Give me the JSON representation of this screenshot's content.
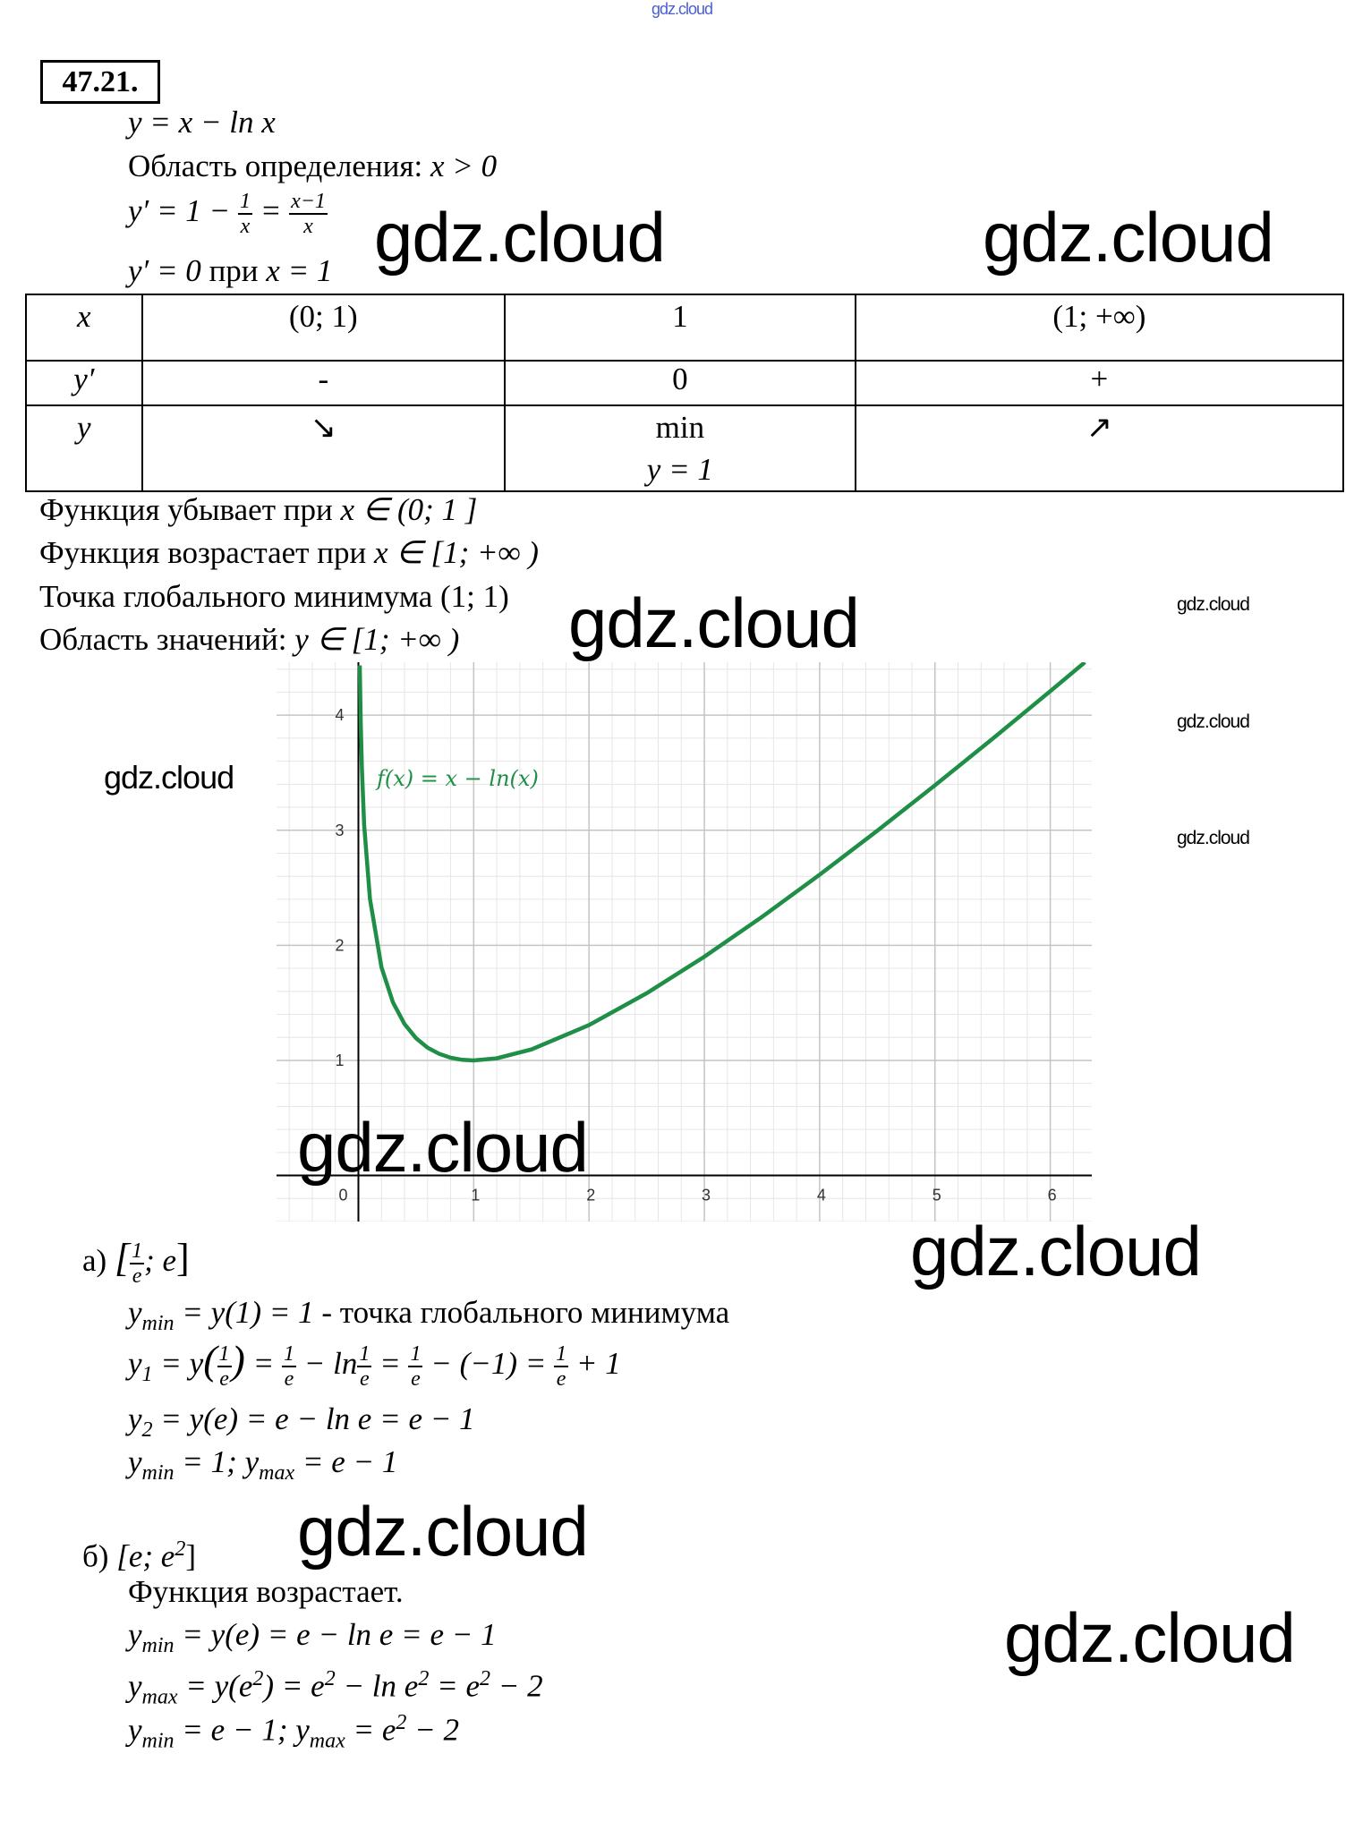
{
  "watermark_top": "gdz.cloud",
  "watermarks": [
    "gdz.cloud",
    "gdz.cloud",
    "gdz.cloud",
    "gdz.cloud",
    "gdz.cloud",
    "gdz.cloud",
    "gdz.cloud",
    "gdz.cloud",
    "gdz.cloud",
    "gdz.cloud",
    "gdz.cloud"
  ],
  "problem_number": "47.21.",
  "intro": {
    "function": "y = x − ln x",
    "domain_label": "Область определения: ",
    "domain_value": "x > 0",
    "deriv_lhs": "y′ = 1 − ",
    "deriv_f1_num": "1",
    "deriv_f1_den": "x",
    "deriv_eq": " = ",
    "deriv_f2_num": "x−1",
    "deriv_f2_den": "x",
    "zero_a": "y′ = 0",
    "zero_b": " при ",
    "zero_c": "x = 1"
  },
  "table": {
    "rows": [
      [
        "x",
        "(0; 1)",
        "1",
        "(1; +∞)"
      ],
      [
        "y′",
        "-",
        "0",
        "+"
      ],
      [
        "y",
        "↘",
        "min",
        "↗"
      ]
    ],
    "extra_cell": "y = 1"
  },
  "conclusions": [
    {
      "text": "Функция убывает при ",
      "math": "x ∈ (0; 1 ]"
    },
    {
      "text": "Функция возрастает при ",
      "math": "x ∈ [1; +∞ )"
    },
    {
      "text": "Точка глобального минимума ",
      "math": "(1; 1)"
    },
    {
      "text": "Область значений: ",
      "math": "y ∈ [1; +∞ )"
    }
  ],
  "chart_data": {
    "type": "line",
    "title": "",
    "function_label": "f(x)  =  x − ln(x)",
    "xlim": [
      -0.71,
      6.36
    ],
    "ylim": [
      -0.4,
      4.46
    ],
    "x_ticks": [
      "0",
      "1",
      "2",
      "3",
      "4",
      "5",
      "6"
    ],
    "y_ticks": [
      "1",
      "2",
      "3",
      "4"
    ],
    "grid": true,
    "minor_grid_step": 0.2,
    "color": "#1f8f47",
    "points": [
      [
        0.012,
        4.432
      ],
      [
        0.02,
        3.932
      ],
      [
        0.03,
        3.537
      ],
      [
        0.05,
        3.046
      ],
      [
        0.1,
        2.403
      ],
      [
        0.2,
        1.809
      ],
      [
        0.3,
        1.504
      ],
      [
        0.4,
        1.316
      ],
      [
        0.5,
        1.193
      ],
      [
        0.6,
        1.111
      ],
      [
        0.7,
        1.057
      ],
      [
        0.8,
        1.023
      ],
      [
        0.9,
        1.005
      ],
      [
        1,
        1
      ],
      [
        1.2,
        1.018
      ],
      [
        1.5,
        1.095
      ],
      [
        2,
        1.307
      ],
      [
        2.5,
        1.584
      ],
      [
        3,
        1.901
      ],
      [
        3.5,
        2.247
      ],
      [
        4,
        2.614
      ],
      [
        4.5,
        2.996
      ],
      [
        5,
        3.391
      ],
      [
        5.5,
        3.795
      ],
      [
        6,
        4.208
      ],
      [
        6.3,
        4.46
      ]
    ]
  },
  "part_a": {
    "label": "а) ",
    "interval_open": "[",
    "interval_num": "1",
    "interval_den": "e",
    "interval_rest": "; e",
    "interval_close": "]",
    "line1_math": "y",
    "line1_sub": "min",
    "line1_rest": " = y(1) = 1",
    "line1_text": " - точка глобального минимума",
    "line2": {
      "a": "y",
      "sub": "1",
      "b": " = y",
      "c": "(",
      "d": ")",
      "e": " = ",
      "f": " − ln",
      "g": " = ",
      "h": " − (−1) = ",
      "i": " + 1",
      "num": "1",
      "den": "e"
    },
    "line3_a": "y",
    "line3_sub": "2",
    "line3_rest": " = y(e) = e − ln e = e − 1",
    "line4_a": "y",
    "line4_sub1": "min",
    "line4_b": " = 1; y",
    "line4_sub2": "max",
    "line4_c": " = e − 1"
  },
  "part_b": {
    "label": "б) ",
    "interval_a": "[e; e",
    "interval_sup": "2",
    "interval_b": "]",
    "text": "Функция возрастает.",
    "line1_a": "y",
    "line1_sub": "min",
    "line1_rest": " = y(e) = e − ln e = e − 1",
    "line2_a": "y",
    "line2_sub": "max",
    "line2_b": " = y(e",
    "line2_c": ") = e",
    "line2_d": " − ln e",
    "line2_e": " = e",
    "line2_f": " − 2",
    "sup": "2",
    "line3_a": "y",
    "line3_sub1": "min",
    "line3_b": " = e − 1; y",
    "line3_sub2": "max",
    "line3_c": " = e",
    "line3_d": " − 2"
  }
}
